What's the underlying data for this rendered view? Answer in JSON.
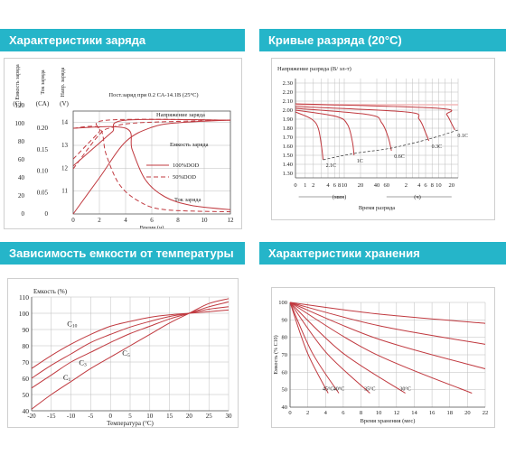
{
  "headers": {
    "charge": "Характеристики заряда",
    "discharge": "Кривые разряда (20°C)",
    "temperature": "Зависимость емкости от температуры",
    "storage": "Характеристики хранения"
  },
  "colors": {
    "header_bg": "#25b5c9",
    "curve": "#c0393f",
    "grid": "#bdbdbd",
    "hline": "#f2b8b8"
  },
  "chart_data": [
    {
      "id": "charge",
      "type": "line",
      "title": "Пост.заряд при 0.2 СА-14.1В (25°С)",
      "col_labels": [
        "Емкость заряда",
        "Ток заряда",
        "Напр. заряда"
      ],
      "units": [
        "(C)",
        "(CA)",
        "(V)"
      ],
      "xlabel": "Время (ч)",
      "x_ticks": [
        0,
        2,
        4,
        6,
        8,
        10,
        12
      ],
      "capacity_ticks": [
        0,
        20,
        40,
        60,
        80,
        100,
        120
      ],
      "current_ticks": [
        "0",
        "0.05",
        "0.10",
        "0.15",
        "0.20"
      ],
      "voltage_ticks": [
        11,
        12,
        13,
        14
      ],
      "annotations": {
        "voltage": "Напряжение заряда",
        "capacity": "Емкость заряда",
        "current": "Ток заряда"
      },
      "legend": [
        "100%DOD",
        "50%DOD"
      ],
      "series": [
        {
          "name": "100%DOD",
          "dash": false,
          "v": [
            [
              0,
              12.1
            ],
            [
              1,
              12.6
            ],
            [
              2,
              13.1
            ],
            [
              3,
              13.6
            ],
            [
              4,
              14.1
            ],
            [
              12,
              14.1
            ]
          ],
          "cap": [
            [
              0,
              0
            ],
            [
              2,
              40
            ],
            [
              4,
              80
            ],
            [
              6,
              96
            ],
            [
              8,
              101
            ],
            [
              12,
              104
            ]
          ],
          "cur": [
            [
              0,
              0.2
            ],
            [
              4,
              0.2
            ],
            [
              4.5,
              0.15
            ],
            [
              5.5,
              0.08
            ],
            [
              7,
              0.04
            ],
            [
              9,
              0.02
            ],
            [
              12,
              0.01
            ]
          ]
        },
        {
          "name": "50%DOD",
          "dash": true,
          "v": [
            [
              0,
              12.4
            ],
            [
              1,
              13.0
            ],
            [
              2,
              13.6
            ],
            [
              2.6,
              14.1
            ],
            [
              12,
              14.1
            ]
          ],
          "cap": [
            [
              0,
              50
            ],
            [
              2,
              88
            ],
            [
              3,
              96
            ],
            [
              5,
              101
            ],
            [
              12,
              104
            ]
          ],
          "cur": [
            [
              0,
              0.2
            ],
            [
              2,
              0.2
            ],
            [
              2.5,
              0.14
            ],
            [
              3.5,
              0.07
            ],
            [
              5,
              0.03
            ],
            [
              7,
              0.01
            ],
            [
              12,
              0.005
            ]
          ]
        }
      ]
    },
    {
      "id": "discharge",
      "type": "line",
      "ylabel": "Напряжение разряда (В/ эл-т)",
      "xlabel": "Время разряда",
      "y_ticks": [
        "2.30",
        "2.20",
        "2.10",
        "2.00",
        "1.90",
        "1.80",
        "1.70",
        "1.60",
        "1.50",
        "1.40",
        "1.30"
      ],
      "x_ticks_min": [
        "0",
        "1",
        "2",
        "4",
        "6",
        "8",
        "10",
        "20",
        "40",
        "60"
      ],
      "x_ticks_h": [
        "2",
        "4",
        "6",
        "8",
        "10",
        "20"
      ],
      "unit_min": "(мин)",
      "unit_h": "(ч)",
      "series": [
        {
          "name": "2.1C",
          "y": [
            [
              0,
              1.98
            ],
            [
              10,
              1.9
            ],
            [
              14,
              1.8
            ],
            [
              16,
              1.6
            ],
            [
              17,
              1.45
            ]
          ]
        },
        {
          "name": "1C",
          "y": [
            [
              0,
              2.0
            ],
            [
              25,
              1.93
            ],
            [
              32,
              1.84
            ],
            [
              35,
              1.65
            ],
            [
              36,
              1.5
            ]
          ]
        },
        {
          "name": "0.6C",
          "y": [
            [
              0,
              2.02
            ],
            [
              45,
              1.95
            ],
            [
              53,
              1.86
            ],
            [
              57,
              1.7
            ],
            [
              59,
              1.55
            ]
          ]
        },
        {
          "name": "0.3C",
          "y": [
            [
              0,
              2.04
            ],
            [
              68,
              1.98
            ],
            [
              76,
              1.9
            ],
            [
              80,
              1.75
            ],
            [
              82,
              1.66
            ]
          ]
        },
        {
          "name": "0.1C",
          "y": [
            [
              0,
              2.07
            ],
            [
              88,
              2.02
            ],
            [
              93,
              1.95
            ],
            [
              96,
              1.85
            ],
            [
              98,
              1.78
            ]
          ]
        },
        {
          "name": "",
          "y": [
            [
              0,
              2.06
            ],
            [
              100,
              2.06
            ]
          ]
        }
      ]
    },
    {
      "id": "temperature",
      "type": "line",
      "ylabel": "Емкость (%)",
      "xlabel": "Температура (°C)",
      "x_ticks": [
        -20,
        -15,
        -10,
        -5,
        0,
        5,
        10,
        15,
        20,
        25,
        30
      ],
      "y_ticks": [
        40,
        50,
        60,
        70,
        80,
        90,
        100,
        110
      ],
      "series": [
        {
          "name": "C10",
          "values": [
            [
              -20,
              66
            ],
            [
              -15,
              74
            ],
            [
              -10,
              81
            ],
            [
              -5,
              87
            ],
            [
              0,
              92
            ],
            [
              5,
              95
            ],
            [
              10,
              97.5
            ],
            [
              15,
              99
            ],
            [
              20,
              100
            ],
            [
              25,
              101
            ],
            [
              30,
              102
            ]
          ]
        },
        {
          "name": "C5",
          "values": [
            [
              -20,
              60
            ],
            [
              -15,
              68
            ],
            [
              -10,
              75
            ],
            [
              -5,
              82
            ],
            [
              0,
              87
            ],
            [
              5,
              91.5
            ],
            [
              10,
              95
            ],
            [
              15,
              98
            ],
            [
              20,
              100
            ],
            [
              25,
              102.5
            ],
            [
              30,
              104
            ]
          ]
        },
        {
          "name": "C3",
          "values": [
            [
              -20,
              54
            ],
            [
              -15,
              62
            ],
            [
              -10,
              70
            ],
            [
              -5,
              76
            ],
            [
              0,
              82
            ],
            [
              5,
              87.5
            ],
            [
              10,
              92
            ],
            [
              15,
              96.5
            ],
            [
              20,
              100
            ],
            [
              25,
              104
            ],
            [
              30,
              107
            ]
          ]
        },
        {
          "name": "C1",
          "values": [
            [
              -20,
              41
            ],
            [
              -15,
              50
            ],
            [
              -10,
              58
            ],
            [
              -5,
              66
            ],
            [
              0,
              73
            ],
            [
              5,
              80
            ],
            [
              10,
              87
            ],
            [
              15,
              94
            ],
            [
              20,
              100
            ],
            [
              25,
              106
            ],
            [
              30,
              109
            ]
          ]
        }
      ]
    },
    {
      "id": "storage",
      "type": "line",
      "ylabel": "Емкость (% С10)",
      "xlabel": "Время хранения (мес)",
      "x_ticks": [
        0,
        2,
        4,
        6,
        8,
        10,
        12,
        14,
        16,
        18,
        20,
        22
      ],
      "y_ticks": [
        40,
        50,
        60,
        70,
        80,
        90,
        100
      ],
      "series": [
        {
          "name": "45°C",
          "values": [
            [
              0,
              100
            ],
            [
              4.3,
              48
            ]
          ]
        },
        {
          "name": "40°C",
          "values": [
            [
              0,
              100
            ],
            [
              5.5,
              48
            ]
          ]
        },
        {
          "name": "35°C",
          "values": [
            [
              0,
              100
            ],
            [
              9,
              48
            ]
          ]
        },
        {
          "name": "30°C",
          "values": [
            [
              0,
              100
            ],
            [
              13,
              48
            ]
          ]
        },
        {
          "name": "",
          "values": [
            [
              0,
              100
            ],
            [
              20.5,
              48
            ]
          ]
        },
        {
          "name": "",
          "values": [
            [
              0,
              100
            ],
            [
              22,
              62
            ]
          ]
        },
        {
          "name": "",
          "values": [
            [
              0,
              100
            ],
            [
              22,
              76
            ]
          ]
        },
        {
          "name": "",
          "values": [
            [
              0,
              100
            ],
            [
              22,
              88
            ]
          ]
        }
      ]
    }
  ]
}
